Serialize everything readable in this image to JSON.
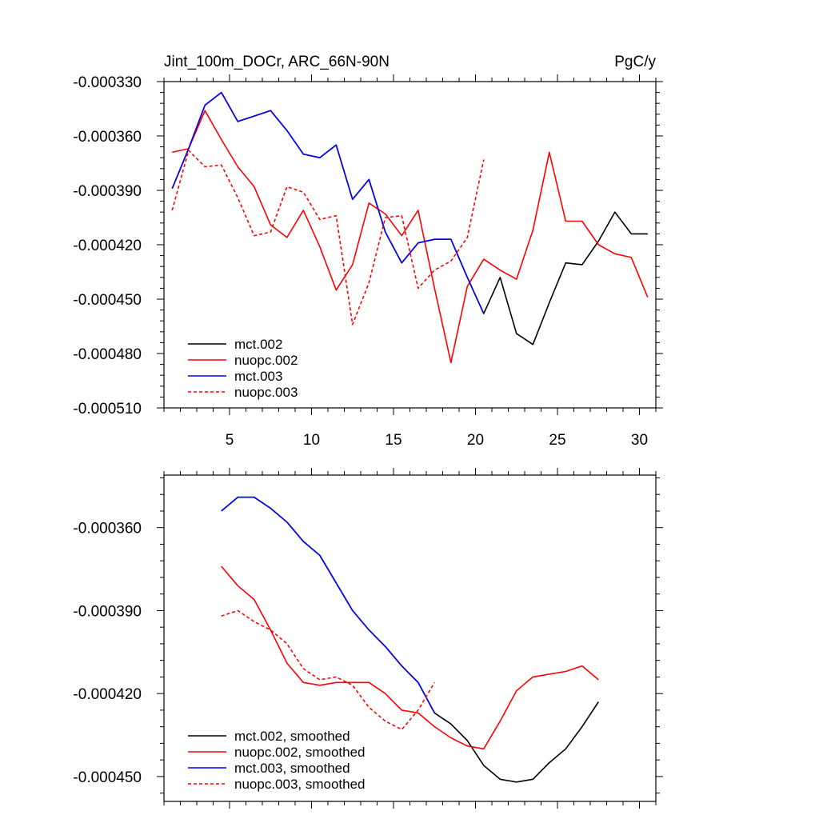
{
  "chart_data": [
    {
      "type": "line",
      "title": "Jint_100m_DOCr, ARC_66N-90N",
      "units": "PgC/y",
      "xlabel": "",
      "ylabel": "",
      "xlim": [
        1,
        31
      ],
      "ylim": [
        -0.00051,
        -0.00033
      ],
      "xticks": [
        5,
        10,
        15,
        20,
        25,
        30
      ],
      "xtick_labels": [
        "5",
        "10",
        "15",
        "20",
        "25",
        "30"
      ],
      "yticks": [
        -0.00033,
        -0.00036,
        -0.00039,
        -0.00042,
        -0.00045,
        -0.00048,
        -0.00051
      ],
      "ytick_labels": [
        "-0.000330",
        "-0.000360",
        "-0.000390",
        "-0.000420",
        "-0.000450",
        "-0.000480",
        "-0.000510"
      ],
      "legend": "bottom-left",
      "series": [
        {
          "name": "mct.002",
          "color": "#000000",
          "dash": "solid",
          "x": [
            1.5,
            2.5,
            3.5,
            4.5,
            5.5,
            6.5,
            7.5,
            8.5,
            9.5,
            10.5,
            11.5,
            12.5,
            13.5,
            14.5,
            15.5,
            16.5,
            17.5,
            18.5,
            19.5,
            20.5,
            21.5,
            22.5,
            23.5,
            24.5,
            25.5,
            26.5,
            27.5,
            28.5,
            29.5,
            30.5
          ],
          "values": [
            -0.000389,
            -0.000367,
            -0.000343,
            -0.000336,
            -0.000352,
            -0.000349,
            -0.000346,
            -0.000357,
            -0.00037,
            -0.000372,
            -0.000365,
            -0.000395,
            -0.000384,
            -0.000413,
            -0.00043,
            -0.000419,
            -0.000417,
            -0.000417,
            -0.000438,
            -0.000458,
            -0.000438,
            -0.000469,
            -0.000475,
            -0.000452,
            -0.00043,
            -0.000431,
            -0.000418,
            -0.000402,
            -0.000414,
            -0.000414
          ]
        },
        {
          "name": "nuopc.002",
          "color": "#ff0000",
          "dash": "solid",
          "x": [
            1.5,
            2.5,
            3.5,
            4.5,
            5.5,
            6.5,
            7.5,
            8.5,
            9.5,
            10.5,
            11.5,
            12.5,
            13.5,
            14.5,
            15.5,
            16.5,
            17.5,
            18.5,
            19.5,
            20.5,
            21.5,
            22.5,
            23.5,
            24.5,
            25.5,
            26.5,
            27.5,
            28.5,
            29.5,
            30.5
          ],
          "values": [
            -0.000369,
            -0.000367,
            -0.000346,
            -0.000362,
            -0.000377,
            -0.000388,
            -0.000409,
            -0.000416,
            -0.000401,
            -0.000421,
            -0.000445,
            -0.000431,
            -0.000397,
            -0.000403,
            -0.000415,
            -0.000401,
            -0.000444,
            -0.000485,
            -0.000443,
            -0.000428,
            -0.000434,
            -0.000439,
            -0.000412,
            -0.000369,
            -0.000407,
            -0.000407,
            -0.00042,
            -0.000425,
            -0.000427,
            -0.000449
          ]
        },
        {
          "name": "mct.003",
          "color": "#0000ff",
          "dash": "solid",
          "x": [
            1.5,
            2.5,
            3.5,
            4.5,
            5.5,
            6.5,
            7.5,
            8.5,
            9.5,
            10.5,
            11.5,
            12.5,
            13.5,
            14.5,
            15.5,
            16.5,
            17.5,
            18.5,
            19.5,
            20.5
          ],
          "values": [
            -0.000389,
            -0.000367,
            -0.000343,
            -0.000336,
            -0.000352,
            -0.000349,
            -0.000346,
            -0.000357,
            -0.00037,
            -0.000372,
            -0.000365,
            -0.000395,
            -0.000384,
            -0.000413,
            -0.00043,
            -0.000419,
            -0.000417,
            -0.000417,
            -0.000438,
            -0.000458
          ]
        },
        {
          "name": "nuopc.003",
          "color": "#ff0000",
          "dash": "dashed",
          "x": [
            1.5,
            2.5,
            3.5,
            4.5,
            5.5,
            6.5,
            7.5,
            8.5,
            9.5,
            10.5,
            11.5,
            12.5,
            13.5,
            14.5,
            15.5,
            16.5,
            17.5,
            18.5,
            19.5,
            20.5
          ],
          "values": [
            -0.000401,
            -0.000368,
            -0.000377,
            -0.000376,
            -0.000394,
            -0.000415,
            -0.000413,
            -0.000388,
            -0.000391,
            -0.000406,
            -0.000404,
            -0.000464,
            -0.000441,
            -0.000405,
            -0.000404,
            -0.000444,
            -0.000434,
            -0.000429,
            -0.000416,
            -0.000373
          ]
        }
      ]
    },
    {
      "type": "line",
      "title": "",
      "xlabel": "",
      "ylabel": "",
      "xlim": [
        1,
        31
      ],
      "ylim": [
        -0.000459,
        -0.000341
      ],
      "xticks": [
        5,
        10,
        15,
        20,
        25,
        30
      ],
      "yticks": [
        -0.00036,
        -0.00039,
        -0.00042,
        -0.00045
      ],
      "ytick_labels": [
        "-0.000360",
        "-0.000390",
        "-0.000420",
        "-0.000450"
      ],
      "legend": "bottom-left",
      "series": [
        {
          "name": "mct.002, smoothed",
          "color": "#000000",
          "dash": "solid",
          "x": [
            4.5,
            5.5,
            6.5,
            7.5,
            8.5,
            9.5,
            10.5,
            11.5,
            12.5,
            13.5,
            14.5,
            15.5,
            16.5,
            17.5,
            18.5,
            19.5,
            20.5,
            21.5,
            22.5,
            23.5,
            24.5,
            25.5,
            26.5,
            27.5
          ],
          "values": [
            -0.000354,
            -0.000349,
            -0.000349,
            -0.000353,
            -0.000358,
            -0.000365,
            -0.00037,
            -0.00038,
            -0.00039,
            -0.000397,
            -0.000403,
            -0.00041,
            -0.000416,
            -0.000427,
            -0.000431,
            -0.000437,
            -0.000446,
            -0.000451,
            -0.000452,
            -0.000451,
            -0.000445,
            -0.00044,
            -0.000432,
            -0.000423
          ]
        },
        {
          "name": "nuopc.002, smoothed",
          "color": "#ff0000",
          "dash": "solid",
          "x": [
            4.5,
            5.5,
            6.5,
            7.5,
            8.5,
            9.5,
            10.5,
            11.5,
            12.5,
            13.5,
            14.5,
            15.5,
            16.5,
            17.5,
            18.5,
            19.5,
            20.5,
            21.5,
            22.5,
            23.5,
            24.5,
            25.5,
            26.5,
            27.5
          ],
          "values": [
            -0.000374,
            -0.000381,
            -0.000386,
            -0.000397,
            -0.000409,
            -0.000416,
            -0.000417,
            -0.000416,
            -0.000416,
            -0.000416,
            -0.00042,
            -0.000426,
            -0.000427,
            -0.000432,
            -0.000436,
            -0.000439,
            -0.00044,
            -0.00043,
            -0.000419,
            -0.000414,
            -0.000413,
            -0.000412,
            -0.00041,
            -0.000415
          ]
        },
        {
          "name": "mct.003, smoothed",
          "color": "#0000ff",
          "dash": "solid",
          "x": [
            4.5,
            5.5,
            6.5,
            7.5,
            8.5,
            9.5,
            10.5,
            11.5,
            12.5,
            13.5,
            14.5,
            15.5,
            16.5,
            17.5
          ],
          "values": [
            -0.000354,
            -0.000349,
            -0.000349,
            -0.000353,
            -0.000358,
            -0.000365,
            -0.00037,
            -0.00038,
            -0.00039,
            -0.000397,
            -0.000403,
            -0.00041,
            -0.000416,
            -0.000427
          ]
        },
        {
          "name": "nuopc.003, smoothed",
          "color": "#ff0000",
          "dash": "dashed",
          "x": [
            4.5,
            5.5,
            6.5,
            7.5,
            8.5,
            9.5,
            10.5,
            11.5,
            12.5,
            13.5,
            14.5,
            15.5,
            16.5,
            17.5
          ],
          "values": [
            -0.000392,
            -0.00039,
            -0.000394,
            -0.000397,
            -0.000402,
            -0.000411,
            -0.000415,
            -0.000414,
            -0.000417,
            -0.000425,
            -0.00043,
            -0.000433,
            -0.000426,
            -0.000416
          ]
        }
      ]
    }
  ]
}
